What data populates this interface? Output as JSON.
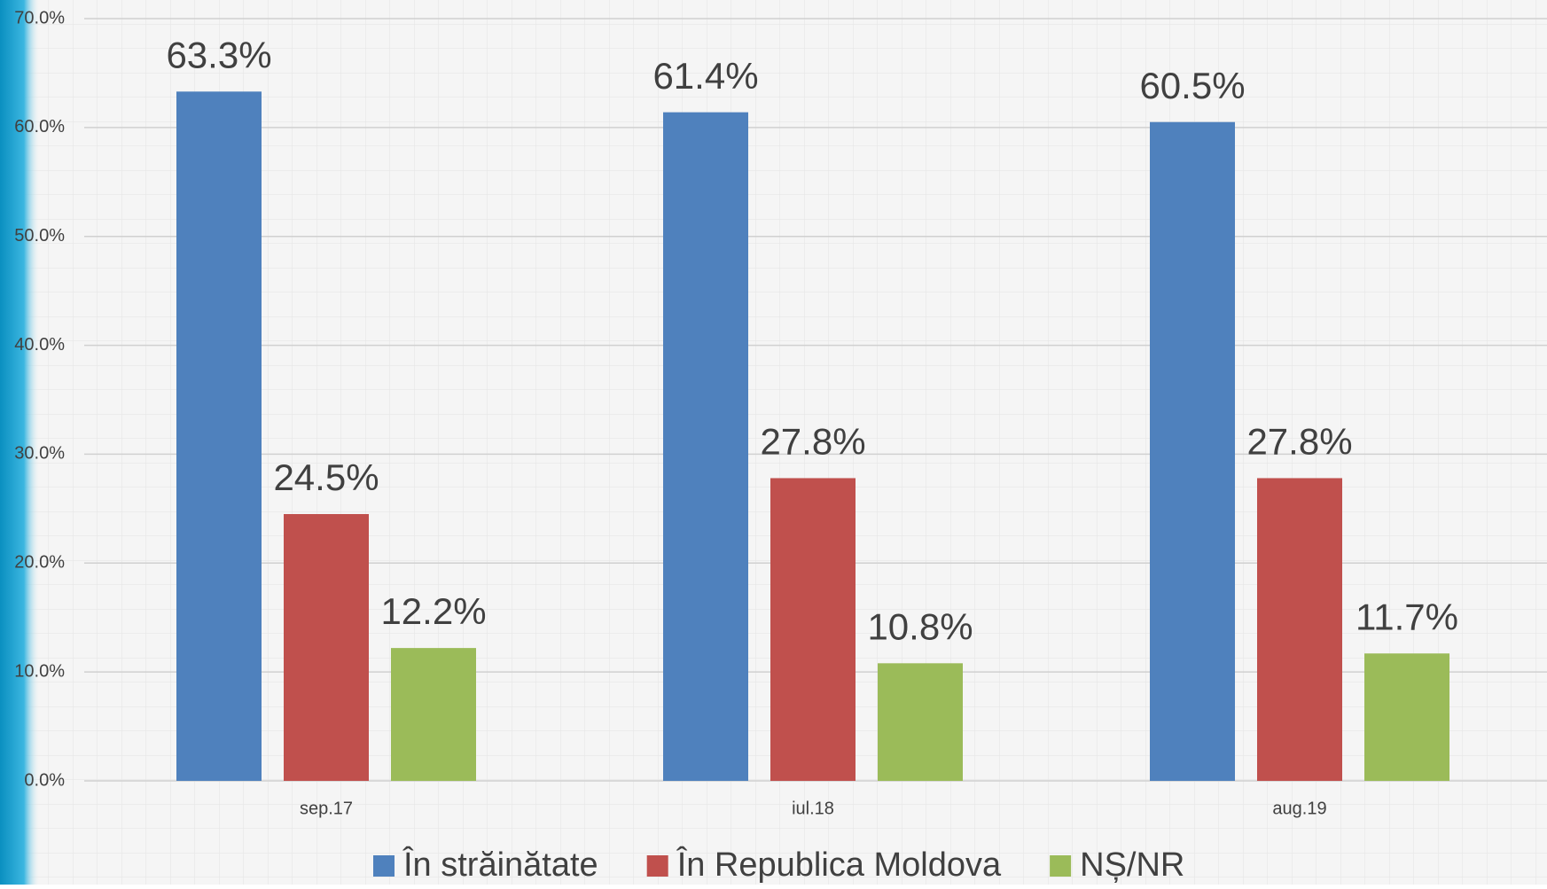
{
  "chart_data": {
    "type": "bar",
    "categories": [
      "sep.17",
      "iul.18",
      "aug.19"
    ],
    "series": [
      {
        "name": "În străinătate",
        "color": "#4f81bd",
        "values": [
          63.3,
          61.4,
          60.5
        ],
        "value_labels": [
          "63.3%",
          "61.4%",
          "60.5%"
        ]
      },
      {
        "name": "În Republica Moldova",
        "color": "#c0504d",
        "values": [
          24.5,
          27.8,
          27.8
        ],
        "value_labels": [
          "24.5%",
          "27.8%",
          "27.8%"
        ]
      },
      {
        "name": "NȘ/NR",
        "color": "#9bbb59",
        "values": [
          12.2,
          10.8,
          11.7
        ],
        "value_labels": [
          "12.2%",
          "10.8%",
          "11.7%"
        ]
      }
    ],
    "ylim": [
      0,
      70
    ],
    "yticks": [
      {
        "value": 0,
        "label": "0.0%"
      },
      {
        "value": 10,
        "label": "10.0%"
      },
      {
        "value": 20,
        "label": "20.0%"
      },
      {
        "value": 30,
        "label": "30.0%"
      },
      {
        "value": 40,
        "label": "40.0%"
      },
      {
        "value": 50,
        "label": "50.0%"
      },
      {
        "value": 60,
        "label": "60.0%"
      },
      {
        "value": 70,
        "label": "70.0%"
      }
    ],
    "grid": true,
    "legend": "bottom"
  }
}
